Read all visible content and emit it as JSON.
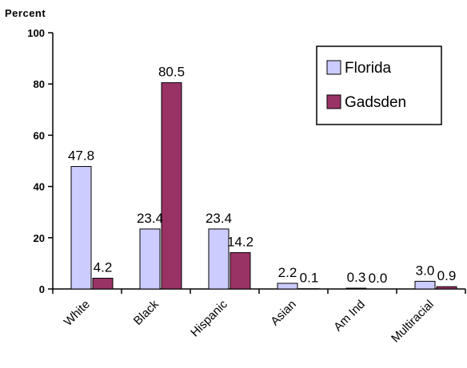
{
  "chart_data": {
    "type": "bar",
    "ylabel": "Percent",
    "ylim": [
      0,
      100
    ],
    "yticks": [
      0,
      20,
      40,
      60,
      80,
      100
    ],
    "categories": [
      "White",
      "Black",
      "Hispanic",
      "Asian",
      "Am Ind",
      "Multiracial"
    ],
    "series": [
      {
        "name": "Florida",
        "color": "#ccccff",
        "values": [
          47.8,
          23.4,
          23.4,
          2.2,
          0.3,
          3.0
        ],
        "labels": [
          "47.8",
          "23.4",
          "23.4",
          "2.2",
          "0.3",
          "3.0"
        ]
      },
      {
        "name": "Gadsden",
        "color": "#993366",
        "values": [
          4.2,
          80.5,
          14.2,
          0.1,
          0.0,
          0.9
        ],
        "labels": [
          "4.2",
          "80.5",
          "14.2",
          "0.1",
          "0.0",
          "0.9"
        ]
      }
    ],
    "grid": false,
    "legend_position": "top-right"
  }
}
